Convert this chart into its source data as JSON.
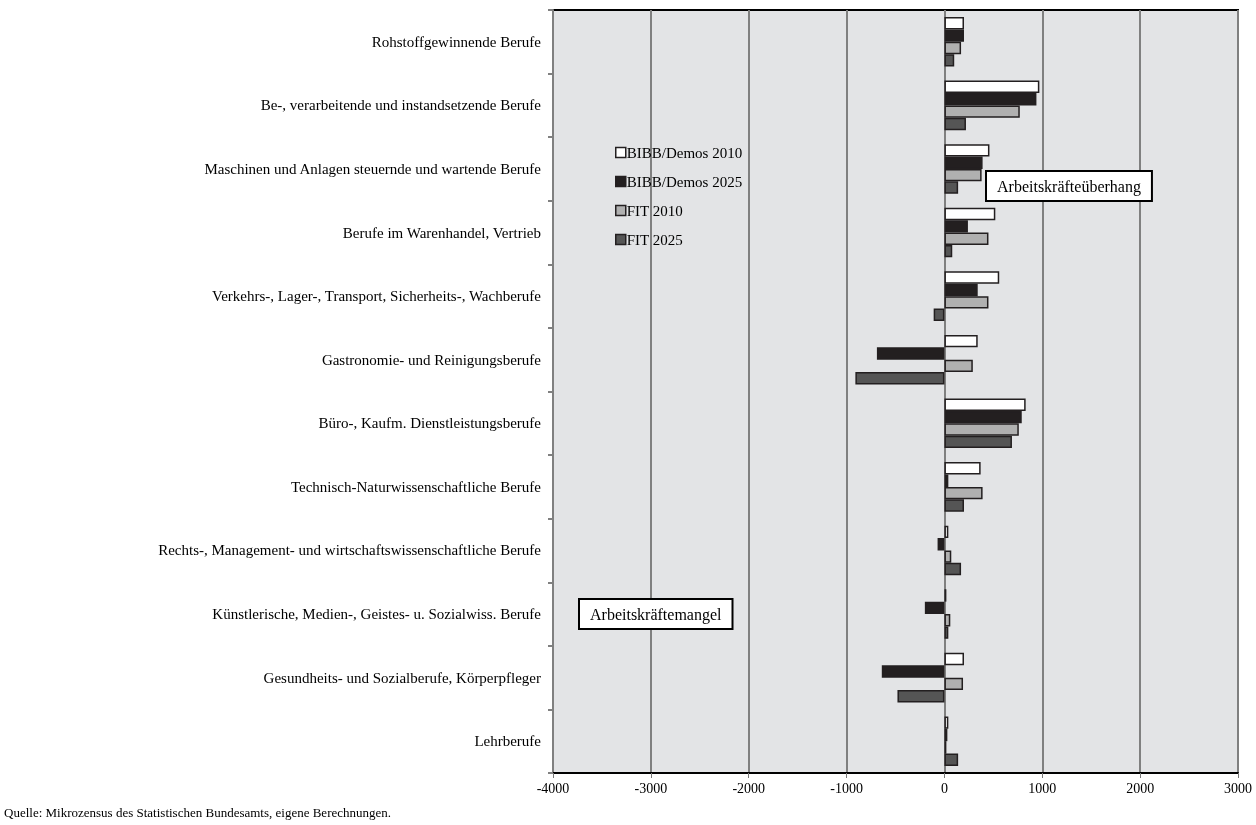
{
  "chart_data": {
    "type": "bar",
    "orientation": "horizontal",
    "categories": [
      "Rohstoffgewinnende Berufe",
      "Be-, verarbeitende und instandsetzende Berufe",
      "Maschinen und Anlagen steuernde und wartende Berufe",
      "Berufe im Warenhandel, Vertrieb",
      "Verkehrs-, Lager-, Transport, Sicherheits-, Wachberufe",
      "Gastronomie- und Reinigungsberufe",
      "Büro-, Kaufm. Dienstleistungsberufe",
      "Technisch-Naturwissenschaftliche Berufe",
      "Rechts-, Management- und wirtschaftswissenschaftliche Berufe",
      "Künstlerische, Medien-, Geistes- u. Sozialwiss. Berufe",
      "Gesundheits- und Sozialberufe, Körperpfleger",
      "Lehrberufe"
    ],
    "series": [
      {
        "name": "BIBB/Demos 2010",
        "color": "#ffffff",
        "values": [
          200,
          970,
          460,
          520,
          560,
          340,
          830,
          370,
          40,
          20,
          200,
          40
        ]
      },
      {
        "name": "BIBB/Demos 2025",
        "color": "#231f20",
        "values": [
          200,
          940,
          390,
          240,
          340,
          -690,
          790,
          40,
          -70,
          -200,
          -640,
          30
        ]
      },
      {
        "name": "FIT 2010",
        "color": "#b0b0b0",
        "values": [
          170,
          770,
          380,
          450,
          450,
          290,
          760,
          390,
          70,
          60,
          190,
          20
        ]
      },
      {
        "name": "FIT 2025",
        "color": "#555555",
        "values": [
          100,
          220,
          140,
          80,
          -110,
          -910,
          690,
          200,
          170,
          40,
          -480,
          140
        ]
      }
    ],
    "xlim": [
      -4000,
      3000
    ],
    "xticks": [
      -4000,
      -3000,
      -2000,
      -1000,
      0,
      1000,
      2000,
      3000
    ],
    "grid": "x",
    "legend": "top left",
    "annotations": [
      "Arbeitskräfteüberhang",
      "Arbeitskräftemangel",
      "Quelle: Mikrozensus des Statistischen Bundesamts, eigene Berechnungen."
    ]
  }
}
